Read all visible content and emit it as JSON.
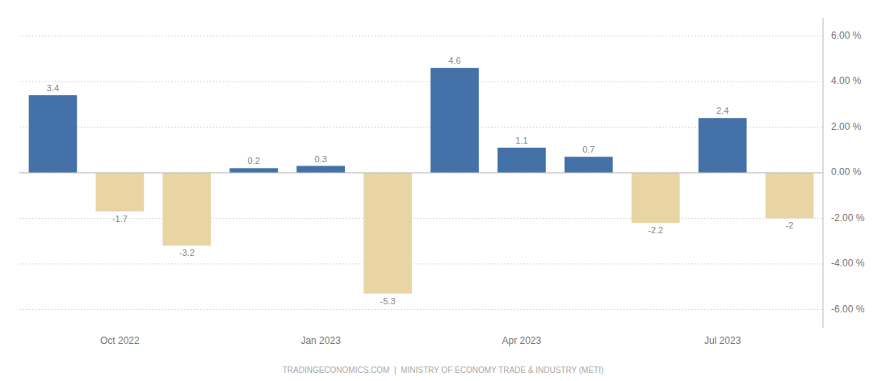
{
  "chart_data": {
    "type": "bar",
    "categories": [
      null,
      "Oct 2022",
      null,
      null,
      "Jan 2023",
      null,
      null,
      "Apr 2023",
      null,
      null,
      "Jul 2023",
      null
    ],
    "values": [
      3.4,
      -1.7,
      -3.2,
      0.2,
      0.3,
      -5.3,
      4.6,
      1.1,
      0.7,
      -2.2,
      2.4,
      -2.0
    ],
    "colors": [
      "#4472a8",
      "#e8d5a3",
      "#e8d5a3",
      "#4472a8",
      "#4472a8",
      "#e8d5a3",
      "#4472a8",
      "#4472a8",
      "#4472a8",
      "#e8d5a3",
      "#4472a8",
      "#e8d5a3"
    ],
    "ylim": [
      -6.8,
      6.8
    ],
    "yticks": [
      {
        "value": -6,
        "label": "-6.00 %"
      },
      {
        "value": -4,
        "label": "-4.00 %"
      },
      {
        "value": -2,
        "label": "-2.00 %"
      },
      {
        "value": 0,
        "label": "0.00 %"
      },
      {
        "value": 2,
        "label": "2.00 %"
      },
      {
        "value": 4,
        "label": "4.00 %"
      },
      {
        "value": 6,
        "label": "6.00 %"
      }
    ],
    "grid": true,
    "data_labels": true,
    "footer": "TRADINGECONOMICS.COM  |  MINISTRY OF ECONOMY TRADE & INDUSTRY (METI)"
  }
}
